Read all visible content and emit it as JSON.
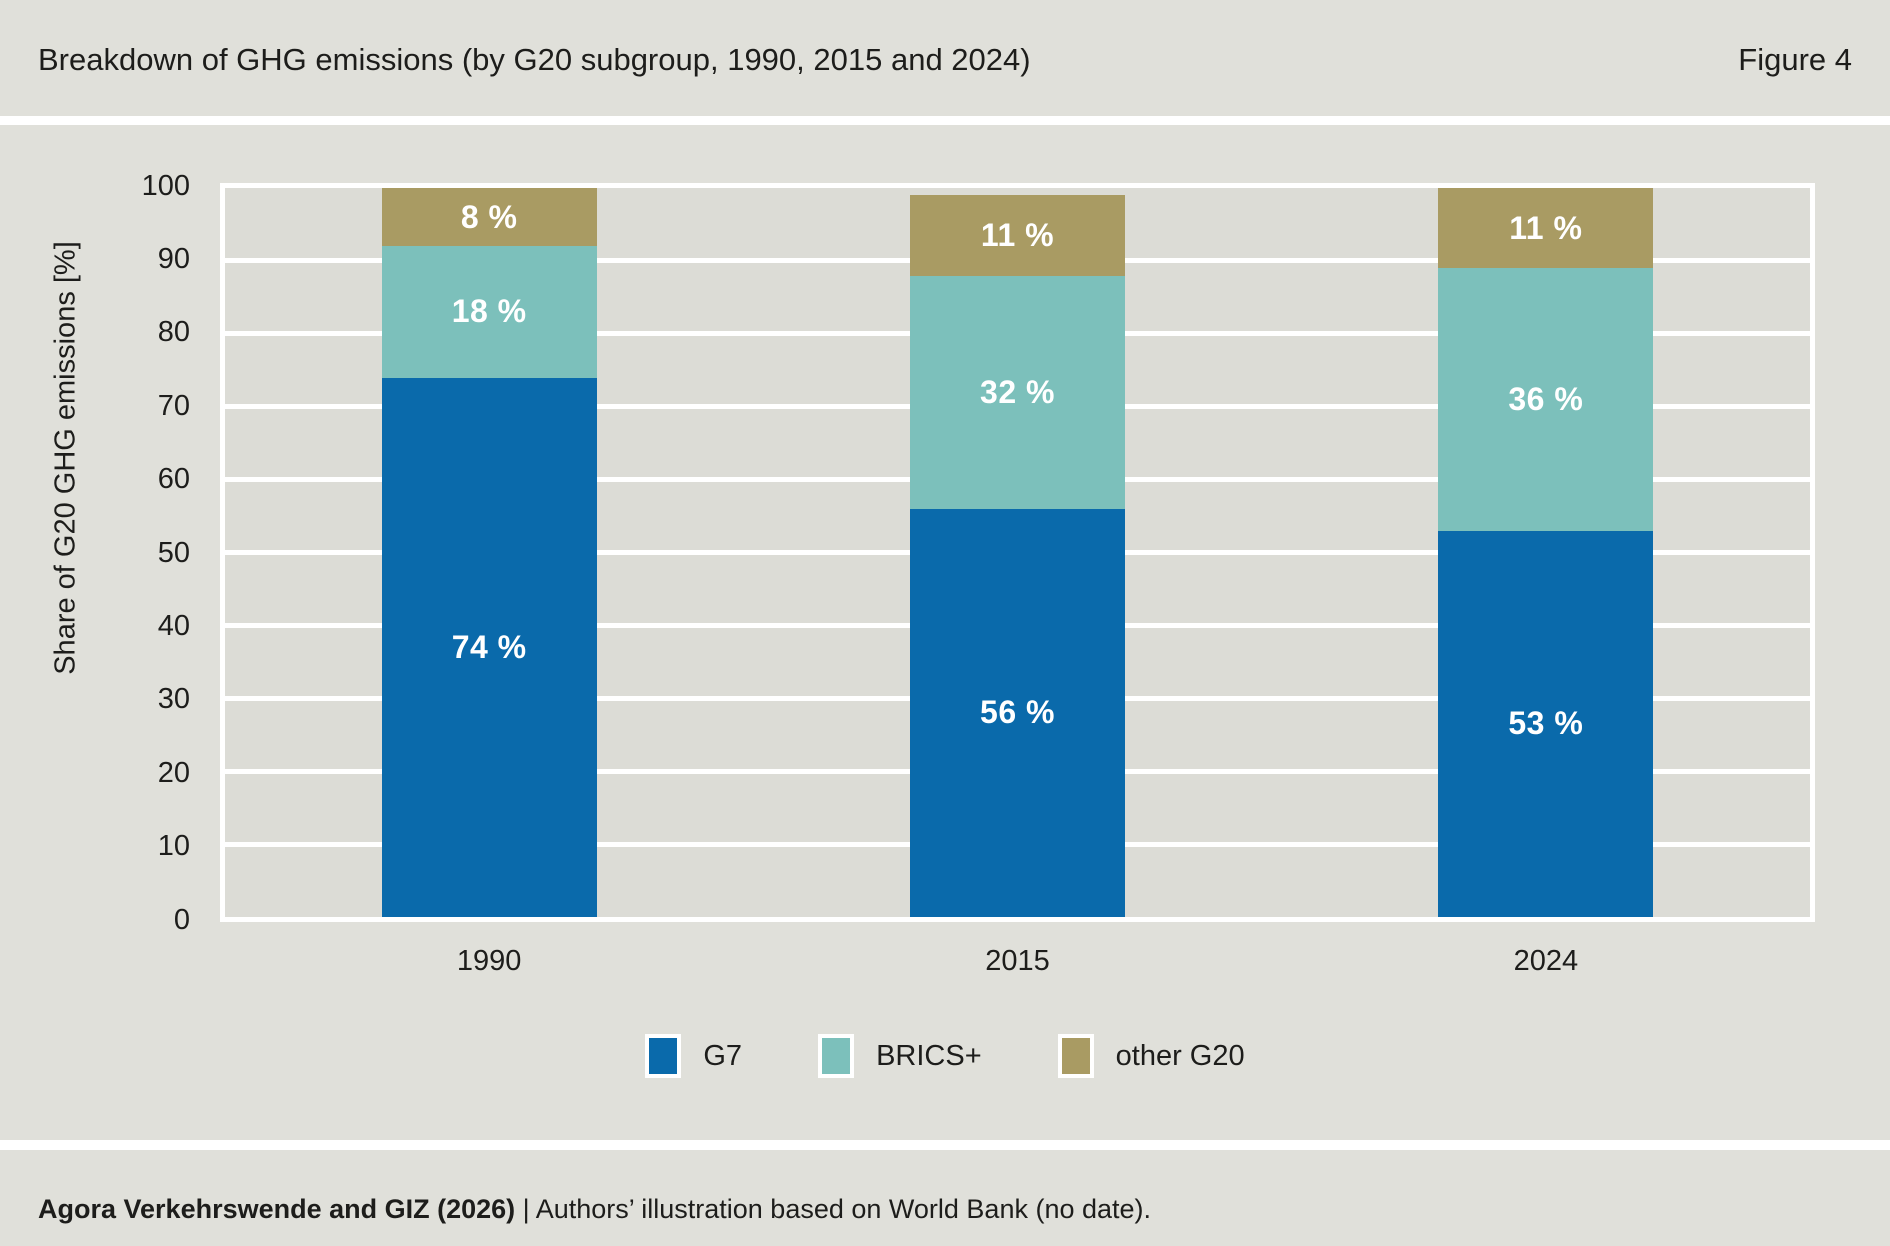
{
  "header": {
    "title": "Breakdown of GHG emissions (by G20 subgroup, 1990, 2015 and 2024)",
    "figure_label": "Figure 4"
  },
  "chart_data": {
    "type": "bar",
    "stacked": true,
    "title": "Breakdown of GHG emissions (by G20 subgroup, 1990, 2015 and 2024)",
    "categories": [
      "1990",
      "2015",
      "2024"
    ],
    "series": [
      {
        "name": "G7",
        "color": "#0a6aab",
        "values": [
          74,
          56,
          53
        ]
      },
      {
        "name": "BRICS+",
        "color": "#7cc0bb",
        "values": [
          18,
          32,
          36
        ]
      },
      {
        "name": "other G20",
        "color": "#a99b63",
        "values": [
          8,
          11,
          11
        ]
      }
    ],
    "value_suffix": " %",
    "xlabel": "",
    "ylabel": "Share of G20 GHG emissions [%]",
    "ylim": [
      0,
      100
    ],
    "yticks": [
      0,
      10,
      20,
      30,
      40,
      50,
      60,
      70,
      80,
      90,
      100
    ],
    "grid": "horizontal-white",
    "legend_position": "bottom-center"
  },
  "footer": {
    "source_bold": "Agora Verkehrswende and GIZ (2026)",
    "source_regular": " | Authors’ illustration based on World Bank (no date)."
  }
}
